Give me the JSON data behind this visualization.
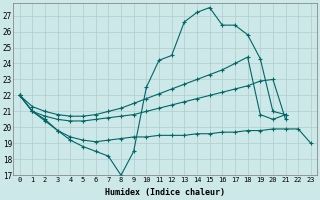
{
  "xlabel": "Humidex (Indice chaleur)",
  "background_color": "#cde8e8",
  "grid_color": "#b0cccc",
  "line_color": "#006666",
  "xlim": [
    -0.5,
    23.5
  ],
  "ylim": [
    17,
    27.8
  ],
  "xticks": [
    0,
    1,
    2,
    3,
    4,
    5,
    6,
    7,
    8,
    9,
    10,
    11,
    12,
    13,
    14,
    15,
    16,
    17,
    18,
    19,
    20,
    21,
    22,
    23
  ],
  "yticks": [
    17,
    18,
    19,
    20,
    21,
    22,
    23,
    24,
    25,
    26,
    27
  ],
  "line1_x": [
    0,
    1,
    2,
    3,
    4,
    5,
    6,
    7,
    8,
    9,
    10,
    11,
    12,
    13,
    14,
    15,
    16,
    17,
    18,
    19,
    20,
    21
  ],
  "line1_y": [
    22.0,
    21.0,
    20.5,
    19.8,
    19.2,
    18.8,
    18.5,
    18.2,
    17.0,
    18.5,
    22.5,
    24.2,
    24.5,
    26.6,
    27.2,
    27.5,
    26.4,
    26.4,
    25.8,
    24.3,
    21.0,
    20.8
  ],
  "line2_x": [
    0,
    1,
    2,
    3,
    4,
    5,
    6,
    7,
    8,
    9,
    10,
    11,
    12,
    13,
    14,
    15,
    16,
    17,
    18,
    19,
    20,
    21,
    22,
    23
  ],
  "line2_y": [
    22.0,
    21.3,
    21.0,
    20.8,
    20.7,
    20.7,
    20.8,
    21.0,
    21.2,
    21.5,
    21.8,
    22.1,
    22.4,
    22.7,
    23.0,
    23.3,
    23.6,
    24.0,
    24.4,
    20.8,
    20.5,
    20.8,
    null,
    null
  ],
  "line3_x": [
    0,
    1,
    2,
    3,
    4,
    5,
    6,
    7,
    8,
    9,
    10,
    11,
    12,
    13,
    14,
    15,
    16,
    17,
    18,
    19,
    20,
    21,
    22,
    23
  ],
  "line3_y": [
    22.0,
    21.0,
    20.7,
    20.5,
    20.4,
    20.4,
    20.5,
    20.6,
    20.7,
    20.8,
    21.0,
    21.2,
    21.4,
    21.6,
    21.8,
    22.0,
    22.2,
    22.4,
    22.6,
    22.9,
    23.0,
    20.5,
    null,
    null
  ],
  "line4_x": [
    0,
    1,
    2,
    3,
    4,
    5,
    6,
    7,
    8,
    9,
    10,
    11,
    12,
    13,
    14,
    15,
    16,
    17,
    18,
    19,
    20,
    21,
    22,
    23
  ],
  "line4_y": [
    22.0,
    21.0,
    20.4,
    19.8,
    19.4,
    19.2,
    19.1,
    19.2,
    19.3,
    19.4,
    19.4,
    19.5,
    19.5,
    19.5,
    19.6,
    19.6,
    19.7,
    19.7,
    19.8,
    19.8,
    19.9,
    19.9,
    19.9,
    19.0
  ]
}
